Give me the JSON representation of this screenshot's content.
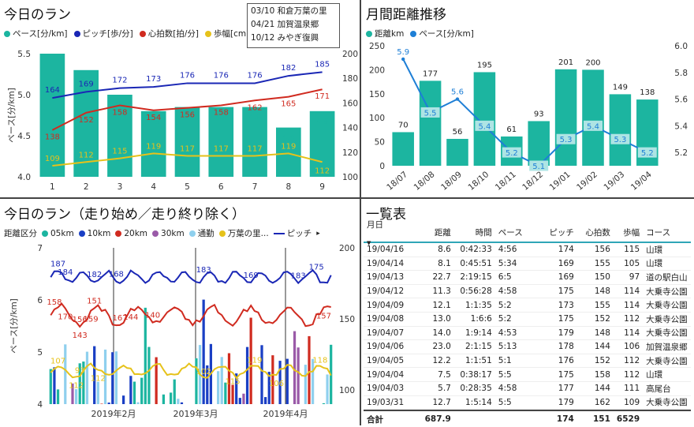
{
  "colors": {
    "teal": "#1cb5a0",
    "navy": "#1a27b5",
    "red": "#d02b20",
    "yellow": "#e6c21a",
    "lightteal": "#aee4e4",
    "blue": "#1e7fd6"
  },
  "p1": {
    "title": "今日のラン",
    "legend": [
      {
        "label": "ペース[分/km]",
        "color": "#1cb5a0"
      },
      {
        "label": "ピッチ[歩/分]",
        "color": "#1a27b5"
      },
      {
        "label": "心拍数[拍/分]",
        "color": "#d02b20"
      },
      {
        "label": "歩幅[cm]",
        "color": "#e6c21a"
      }
    ],
    "ylabel": "ペース[分/km]",
    "notes": [
      "03/10 和倉万葉の里",
      "04/21 加賀温泉郷",
      "10/12 みやぎ復興"
    ]
  },
  "p2": {
    "title": "月間距離推移",
    "legend": [
      {
        "label": "距離km",
        "color": "#1cb5a0"
      },
      {
        "label": "ペース[分/km]",
        "color": "#1e7fd6"
      }
    ]
  },
  "p3": {
    "title": "今日のラン（走り始め／走り終り除く）",
    "legend_title": "距離区分",
    "legend": [
      {
        "label": "05km",
        "color": "#1cb5a0"
      },
      {
        "label": "10km",
        "color": "#1a3fc4"
      },
      {
        "label": "20km",
        "color": "#d02b20"
      },
      {
        "label": "30km",
        "color": "#9a5aa8"
      },
      {
        "label": "通勤",
        "color": "#8fd0ee"
      },
      {
        "label": "万葉の里...",
        "color": "#e6c21a"
      }
    ],
    "legend_line": "ピッチ",
    "ylabel": "ペース[分/km]"
  },
  "p4": {
    "title": "一覧表",
    "headers": [
      "月日",
      "距離",
      "時間",
      "ペース",
      "ピッチ",
      "心拍数",
      "歩幅",
      "コース"
    ],
    "rows": [
      [
        "19/04/16",
        "8.6",
        "0:42:33",
        "4:56",
        "174",
        "156",
        "115",
        "山環"
      ],
      [
        "19/04/14",
        "8.1",
        "0:45:51",
        "5:34",
        "169",
        "155",
        "105",
        "山環"
      ],
      [
        "19/04/13",
        "22.7",
        "2:19:15",
        "6:5",
        "169",
        "150",
        "97",
        "道の駅白山"
      ],
      [
        "19/04/12",
        "11.3",
        "0:56:28",
        "4:58",
        "175",
        "148",
        "114",
        "大乗寺公園"
      ],
      [
        "19/04/09",
        "12.1",
        "1:1:35",
        "5:2",
        "173",
        "155",
        "114",
        "大乗寺公園"
      ],
      [
        "19/04/08",
        "13.0",
        "1:6:6",
        "5:2",
        "175",
        "152",
        "112",
        "大乗寺公園"
      ],
      [
        "19/04/07",
        "14.0",
        "1:9:14",
        "4:53",
        "179",
        "148",
        "114",
        "大乗寺公園"
      ],
      [
        "19/04/06",
        "23.0",
        "2:1:15",
        "5:13",
        "178",
        "144",
        "106",
        "加賀温泉郷"
      ],
      [
        "19/04/05",
        "12.2",
        "1:1:51",
        "5:1",
        "176",
        "152",
        "112",
        "大乗寺公園"
      ],
      [
        "19/04/04",
        "7.5",
        "0:38:17",
        "5:5",
        "175",
        "158",
        "112",
        "山環"
      ],
      [
        "19/04/03",
        "5.7",
        "0:28:35",
        "4:58",
        "177",
        "144",
        "111",
        "高尾台"
      ],
      [
        "19/03/31",
        "12.7",
        "1:5:14",
        "5:5",
        "179",
        "162",
        "109",
        "大乗寺公園"
      ]
    ],
    "footer": [
      "合計",
      "687.9",
      "",
      "",
      "174",
      "151",
      "6529",
      ""
    ]
  },
  "chart_data": [
    {
      "type": "bar",
      "title": "今日のラン",
      "categories": [
        "1",
        "2",
        "3",
        "4",
        "5",
        "6",
        "7",
        "8",
        "9"
      ],
      "series": [
        {
          "name": "ペース[分/km]",
          "axis": "left",
          "kind": "bar",
          "values": [
            5.5,
            5.3,
            5.0,
            4.8,
            4.85,
            4.85,
            4.85,
            4.6,
            4.8
          ],
          "labels": [
            "",
            "5.3",
            "5.0",
            "4.8",
            "",
            "4.9",
            "4.9",
            "4.6",
            "4.8"
          ]
        },
        {
          "name": "ピッチ[歩/分]",
          "axis": "right",
          "kind": "line",
          "values": [
            164,
            169,
            172,
            173,
            176,
            176,
            176,
            182,
            185
          ]
        },
        {
          "name": "心拍数[拍/分]",
          "axis": "right",
          "kind": "line",
          "values": [
            138,
            152,
            158,
            154,
            156,
            158,
            162,
            165,
            171
          ]
        },
        {
          "name": "歩幅[cm]",
          "axis": "right",
          "kind": "line",
          "values": [
            109,
            112,
            115,
            119,
            117,
            117,
            117,
            119,
            112
          ]
        }
      ],
      "ylim": [
        4.0,
        5.5
      ],
      "y2lim": [
        100,
        200
      ],
      "yticks": [
        "4.0",
        "4.5",
        "5.0",
        "5.5"
      ],
      "y2ticks": [
        "100",
        "120",
        "140",
        "160",
        "180",
        "200"
      ]
    },
    {
      "type": "bar",
      "title": "月間距離推移",
      "categories": [
        "18/07",
        "18/08",
        "18/09",
        "18/10",
        "18/11",
        "18/12",
        "19/01",
        "19/02",
        "19/03",
        "19/04"
      ],
      "series": [
        {
          "name": "距離km",
          "axis": "left",
          "kind": "bar",
          "values": [
            70,
            177,
            56,
            195,
            61,
            93,
            201,
            200,
            149,
            138
          ]
        },
        {
          "name": "ペース[分/km]",
          "axis": "right",
          "kind": "line",
          "values": [
            5.9,
            5.5,
            5.6,
            5.4,
            5.2,
            5.1,
            5.3,
            5.4,
            5.3,
            5.2
          ],
          "labels": [
            "5.9",
            "5.5",
            "5.6",
            "5.4",
            "5.2",
            "5.1",
            "5.3",
            "5.4",
            "5.3",
            "5.2"
          ]
        }
      ],
      "ylim": [
        0,
        250
      ],
      "y2lim": [
        5.1,
        6.0
      ],
      "yticks": [
        "0",
        "50",
        "100",
        "150",
        "200",
        "250"
      ],
      "y2ticks": [
        "5.2",
        "5.4",
        "5.6",
        "5.8",
        "6.0"
      ]
    },
    {
      "type": "bar",
      "title": "今日のラン（走り始め／走り終り除く）",
      "xlabels": [
        "2019年2月",
        "2019年3月",
        "2019年4月"
      ],
      "ylim": [
        4,
        7
      ],
      "y2lim": [
        90,
        200
      ],
      "yticks": [
        "4",
        "5",
        "6",
        "7"
      ],
      "y2ticks": [
        "100",
        "150",
        "200"
      ],
      "pitch_labels": [
        "187",
        "184",
        "182",
        "168",
        "183",
        "169",
        "183",
        "175"
      ],
      "hr_labels": [
        "158",
        "170",
        "156",
        "159",
        "151",
        "143",
        "167",
        "144",
        "140",
        "157"
      ],
      "stride_labels": [
        "107",
        "112",
        "93",
        "112",
        "102",
        "115",
        "119",
        "106",
        "118"
      ]
    }
  ]
}
